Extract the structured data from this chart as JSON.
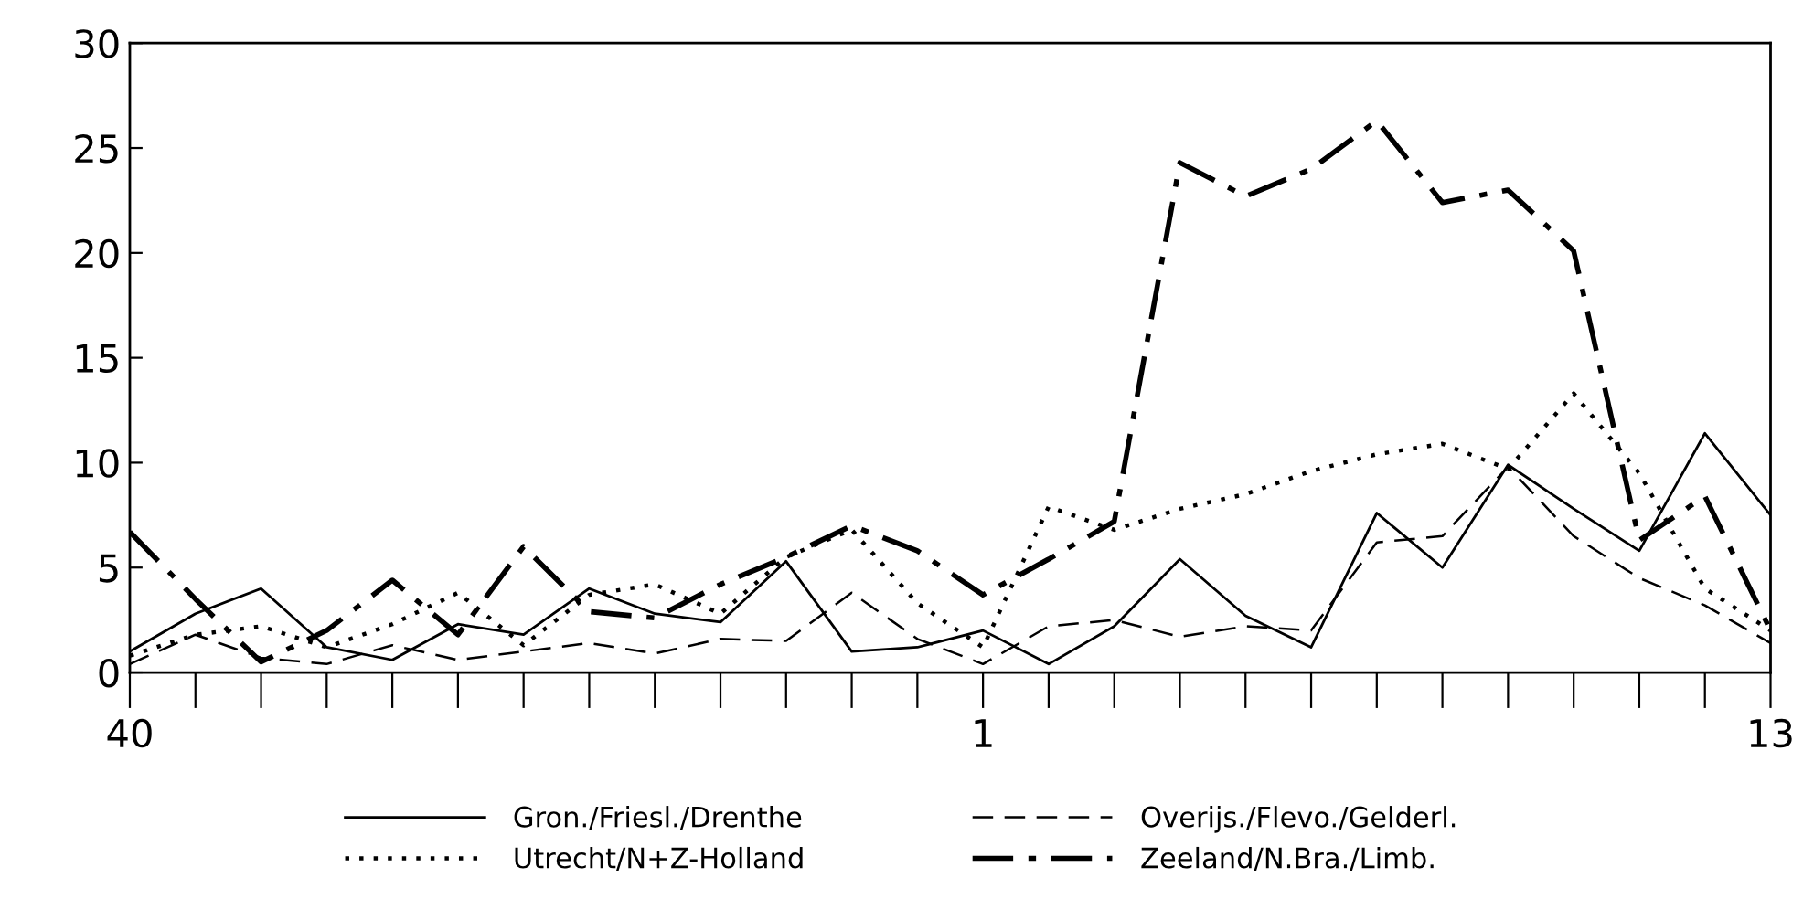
{
  "chart_data": {
    "type": "line",
    "categories": [
      "40",
      null,
      null,
      null,
      null,
      null,
      null,
      null,
      null,
      null,
      null,
      null,
      null,
      "1",
      null,
      null,
      null,
      null,
      null,
      null,
      null,
      null,
      null,
      null,
      null,
      "13"
    ],
    "series": [
      {
        "name": "Gron./Friesl./Drenthe",
        "color": "#000000",
        "line_style": "solid",
        "values": [
          1.0,
          2.8,
          4.0,
          1.2,
          0.6,
          2.3,
          1.8,
          4.0,
          2.8,
          2.4,
          5.3,
          1.0,
          1.2,
          2.0,
          0.4,
          2.2,
          5.4,
          2.7,
          1.2,
          7.6,
          5.0,
          9.9,
          7.8,
          5.8,
          11.4,
          7.5
        ]
      },
      {
        "name": "Overijs./Flevo./Gelderl.",
        "color": "#000000",
        "line_style": "dashed",
        "values": [
          0.4,
          1.8,
          0.7,
          0.4,
          1.3,
          0.6,
          1.0,
          1.4,
          0.9,
          1.6,
          1.5,
          3.8,
          1.6,
          0.4,
          2.2,
          2.5,
          1.7,
          2.2,
          2.0,
          6.2,
          6.5,
          9.8,
          6.5,
          4.5,
          3.2,
          1.4
        ]
      },
      {
        "name": "Utrecht/N+Z-Holland",
        "color": "#000000",
        "line_style": "dotted",
        "values": [
          0.8,
          1.8,
          2.2,
          1.2,
          2.3,
          3.8,
          1.3,
          3.7,
          4.2,
          2.8,
          5.5,
          6.8,
          3.3,
          1.2,
          7.9,
          6.8,
          7.8,
          8.5,
          9.6,
          10.4,
          10.9,
          9.7,
          13.3,
          9.5,
          4.0,
          2.0
        ]
      },
      {
        "name": "Zeeland/N.Bra./Limb.",
        "color": "#000000",
        "line_style": "dashdot",
        "values": [
          6.7,
          3.5,
          0.5,
          2.0,
          4.4,
          1.8,
          6.0,
          2.9,
          2.6,
          4.2,
          5.5,
          7.0,
          5.8,
          3.7,
          5.4,
          7.2,
          24.3,
          22.7,
          24.0,
          26.3,
          22.4,
          23.0,
          20.1,
          6.3,
          8.4,
          2.0
        ]
      }
    ],
    "ylim": [
      0,
      30
    ],
    "yticks": [
      0,
      5,
      10,
      15,
      20,
      25,
      30
    ],
    "grid": false,
    "legend": "bottom",
    "marker": "none"
  }
}
